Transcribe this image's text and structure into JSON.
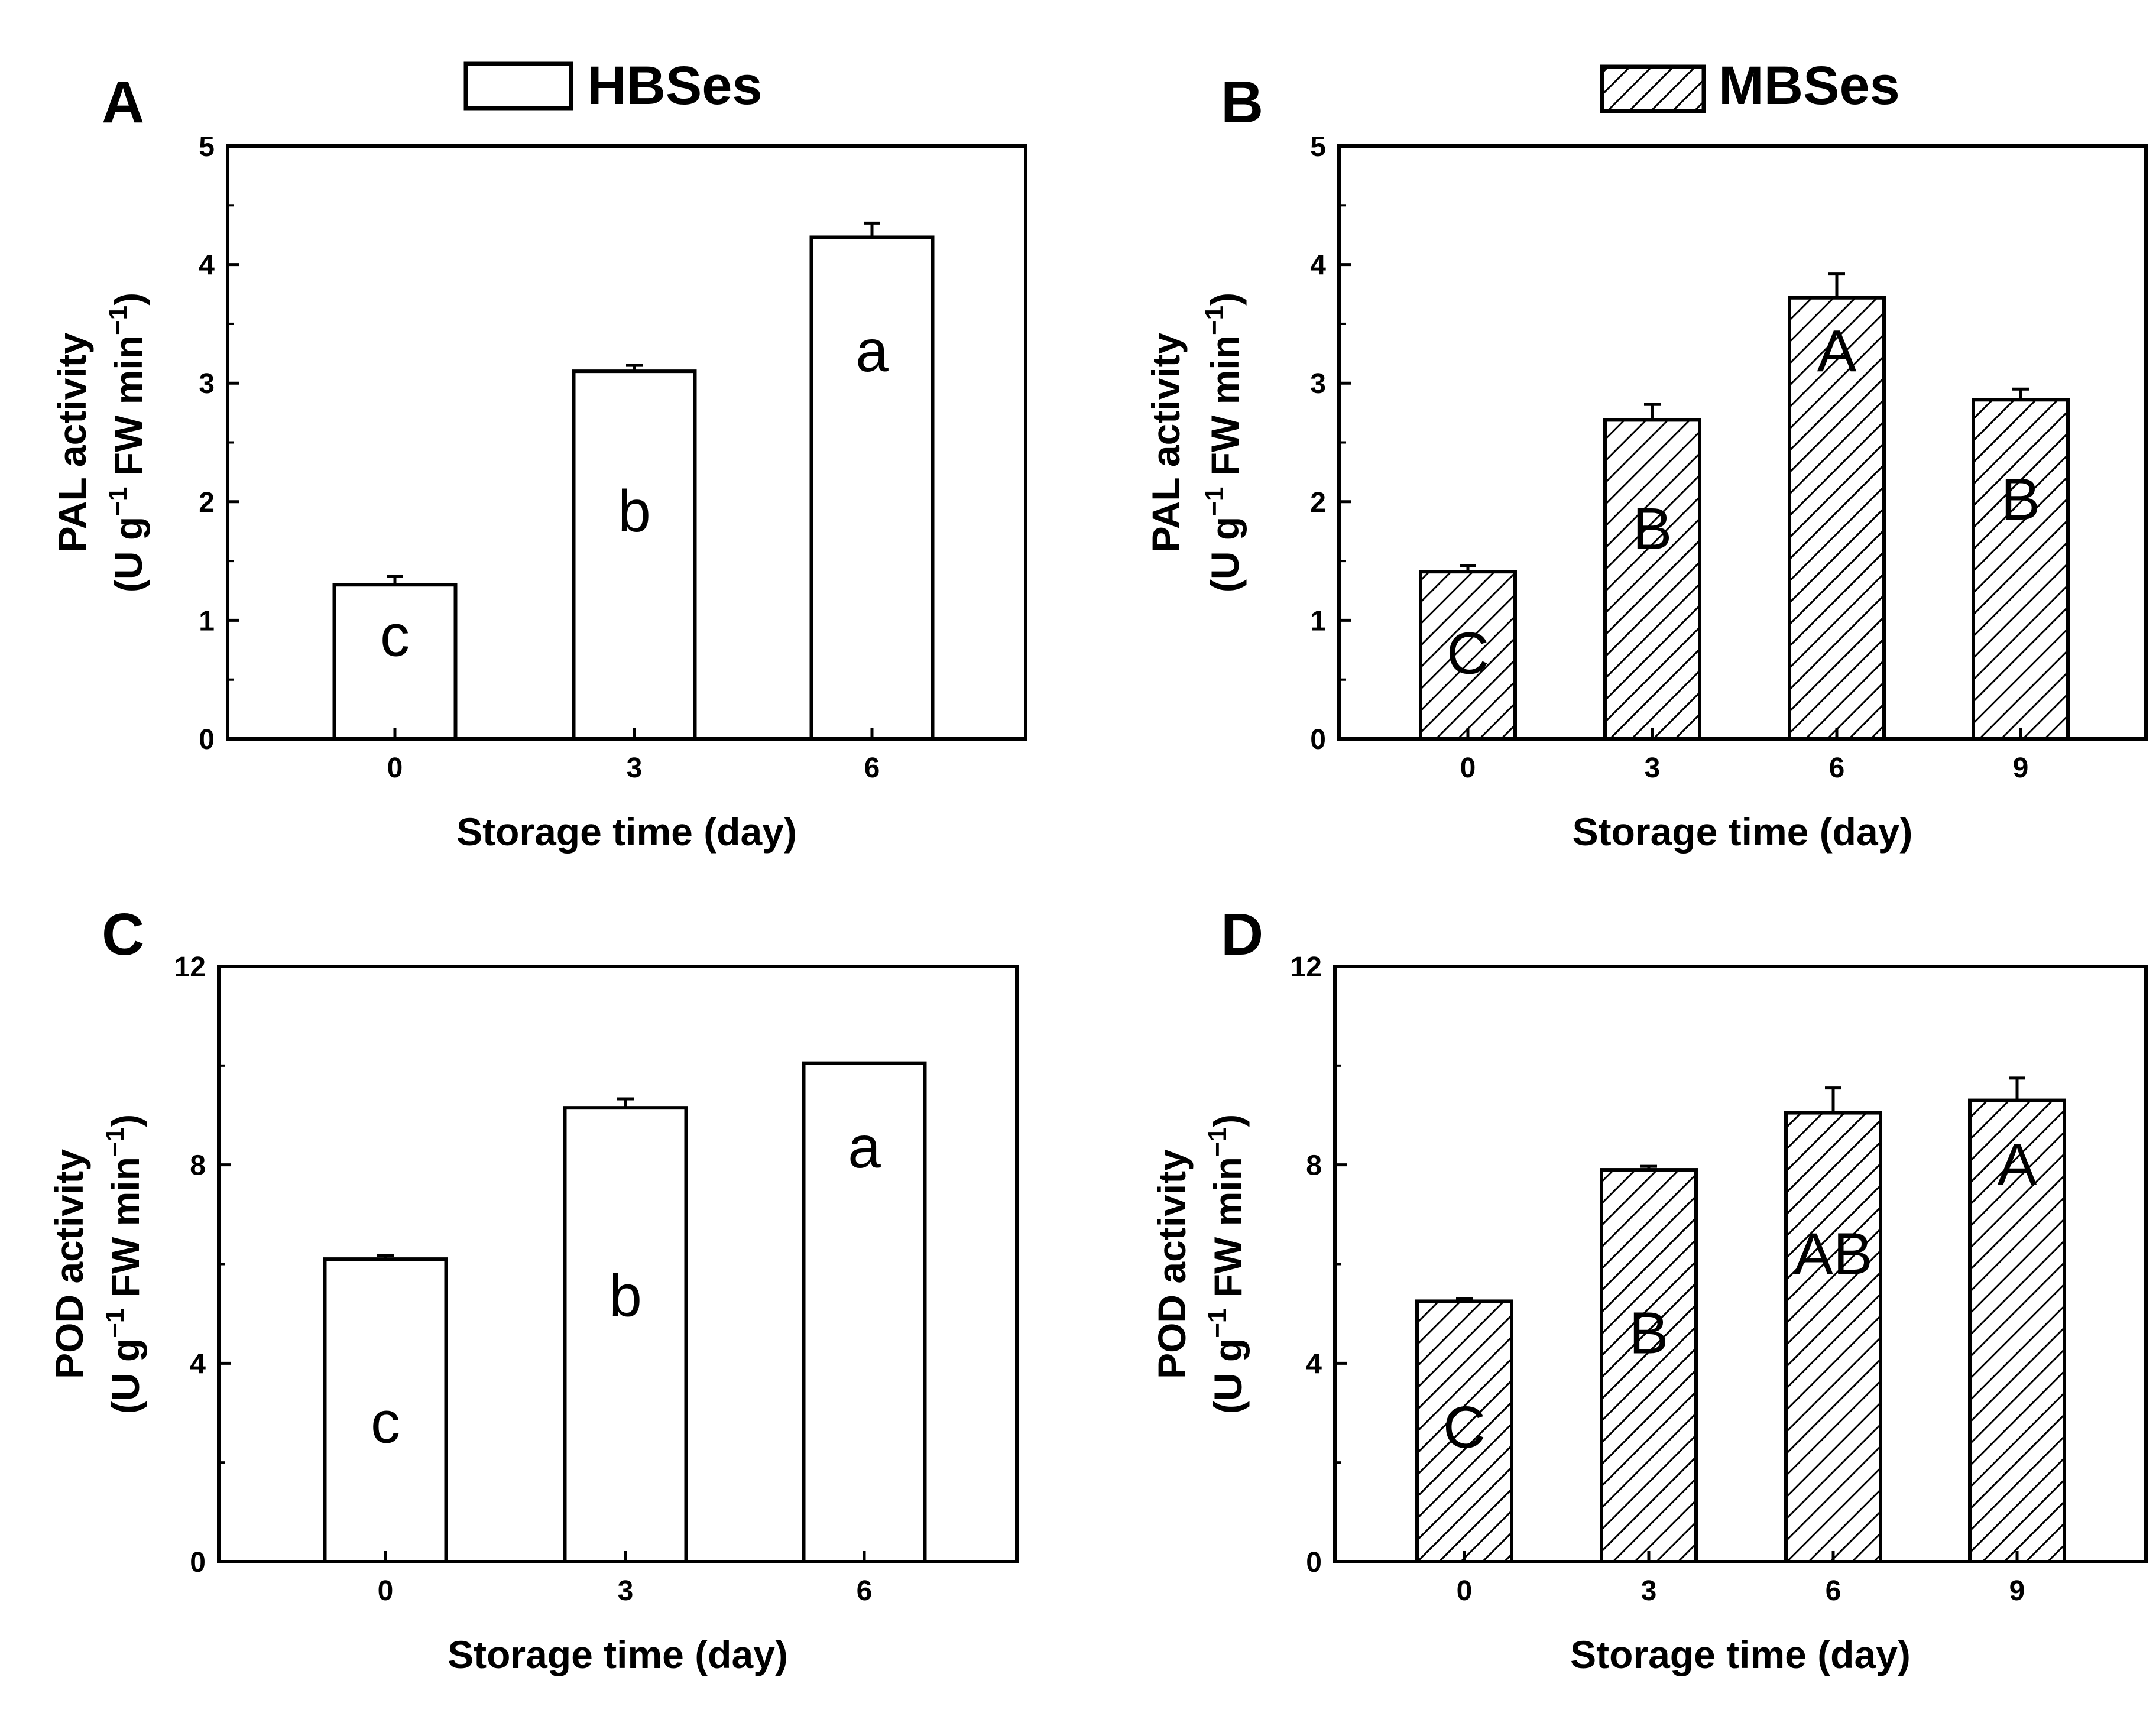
{
  "legend": [
    {
      "label": "HBSes",
      "pattern": "none"
    },
    {
      "label": "MBSes",
      "pattern": "hatch"
    }
  ],
  "colors": {
    "ink": "#000000",
    "fill": "#ffffff"
  },
  "chart_data": [
    {
      "panel": "A",
      "type": "bar",
      "series_name": "HBSes",
      "ylabel_line1": "PAL activity",
      "ylabel_line2": "(U g",
      "ylabel_sup1": "−1",
      "ylabel_mid": " FW min",
      "ylabel_sup2": "−1",
      "ylabel_end": ")",
      "xlabel": "Storage time (day)",
      "categories": [
        "0",
        "3",
        "6"
      ],
      "values": [
        1.3,
        3.1,
        4.23
      ],
      "errors": [
        0.07,
        0.05,
        0.12
      ],
      "letters": [
        "c",
        "b",
        "a"
      ],
      "letter_y": [
        0.7,
        1.75,
        3.1
      ],
      "ylim": [
        0,
        5
      ],
      "yticks": [
        "0",
        "1",
        "2",
        "3",
        "4",
        "5"
      ],
      "ytick_values": [
        0,
        1,
        2,
        3,
        4,
        5
      ]
    },
    {
      "panel": "B",
      "type": "bar",
      "series_name": "MBSes",
      "ylabel_line1": "PAL activity",
      "ylabel_line2": "(U g",
      "ylabel_sup1": "−1",
      "ylabel_mid": " FW min",
      "ylabel_sup2": "−1",
      "ylabel_end": ")",
      "xlabel": "Storage time (day)",
      "categories": [
        "0",
        "3",
        "6",
        "9"
      ],
      "values": [
        1.41,
        2.69,
        3.72,
        2.86
      ],
      "errors": [
        0.05,
        0.13,
        0.2,
        0.09
      ],
      "letters": [
        "C",
        "B",
        "A",
        "B"
      ],
      "letter_y": [
        0.55,
        1.6,
        3.1,
        1.85
      ],
      "ylim": [
        0,
        5
      ],
      "yticks": [
        "0",
        "1",
        "2",
        "3",
        "4",
        "5"
      ],
      "ytick_values": [
        0,
        1,
        2,
        3,
        4,
        5
      ]
    },
    {
      "panel": "C",
      "type": "bar",
      "series_name": "HBSes",
      "ylabel_line1": "POD activity",
      "ylabel_line2": "(U g",
      "ylabel_sup1": "−1",
      "ylabel_mid": " FW min",
      "ylabel_sup2": "−1",
      "ylabel_end": ")",
      "xlabel": "Storage time (day)",
      "categories": [
        "0",
        "3",
        "6"
      ],
      "values": [
        6.1,
        9.15,
        10.05
      ],
      "errors": [
        0.07,
        0.18,
        0.0
      ],
      "letters": [
        "c",
        "b",
        "a"
      ],
      "letter_y": [
        2.4,
        4.95,
        7.95
      ],
      "ylim": [
        0,
        12
      ],
      "yticks": [
        "0",
        "4",
        "8",
        "12"
      ],
      "ytick_values": [
        0,
        4,
        8,
        12
      ]
    },
    {
      "panel": "D",
      "type": "bar",
      "series_name": "MBSes",
      "ylabel_line1": "POD activity",
      "ylabel_line2": "(U g",
      "ylabel_sup1": "−1",
      "ylabel_mid": " FW min",
      "ylabel_sup2": "−1",
      "ylabel_end": ")",
      "xlabel": "Storage time (day)",
      "categories": [
        "0",
        "3",
        "6",
        "9"
      ],
      "values": [
        5.25,
        7.9,
        9.05,
        9.3
      ],
      "errors": [
        0.05,
        0.07,
        0.5,
        0.45
      ],
      "letters": [
        "C",
        "B",
        "AB",
        "A"
      ],
      "letter_y": [
        2.3,
        4.2,
        5.8,
        7.6
      ],
      "ylim": [
        0,
        12
      ],
      "yticks": [
        "0",
        "4",
        "8",
        "12"
      ],
      "ytick_values": [
        0,
        4,
        8,
        12
      ]
    }
  ]
}
